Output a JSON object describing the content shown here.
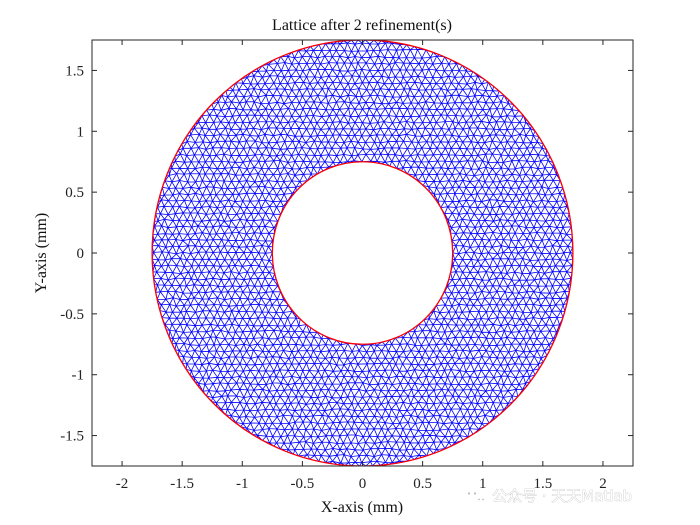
{
  "chart_data": {
    "type": "scatter",
    "title": "Lattice after 2 refinement(s)",
    "xlabel": "X-axis (mm)",
    "ylabel": "Y-axis (mm)",
    "xlim": [
      -2.25,
      2.25
    ],
    "ylim": [
      -1.75,
      1.75
    ],
    "xticks": [
      -2,
      -1.5,
      -1,
      -0.5,
      0,
      0.5,
      1,
      1.5,
      2
    ],
    "xtick_labels": [
      "-2",
      "-1.5",
      "-1",
      "-0.5",
      "0",
      "0.5",
      "1",
      "1.5",
      "2"
    ],
    "yticks": [
      -1.5,
      -1,
      -0.5,
      0,
      0.5,
      1,
      1.5
    ],
    "ytick_labels": [
      "-1.5",
      "-1",
      "-0.5",
      "0",
      "0.5",
      "1",
      "1.5"
    ],
    "grid": false,
    "series": [
      {
        "kind": "triangular-mesh",
        "color": "#0000ff",
        "inner_radius": 0.75,
        "outer_radius": 1.75
      },
      {
        "kind": "circle-boundaries",
        "color": "#ff0000",
        "radii": [
          0.75,
          1.75
        ]
      }
    ]
  },
  "watermark": {
    "text": "公众号 · 天天Matlab",
    "icon": "wechat-logo-icon"
  },
  "colors": {
    "mesh": "#0000ff",
    "boundary": "#ff0000",
    "axes": "#262626"
  }
}
